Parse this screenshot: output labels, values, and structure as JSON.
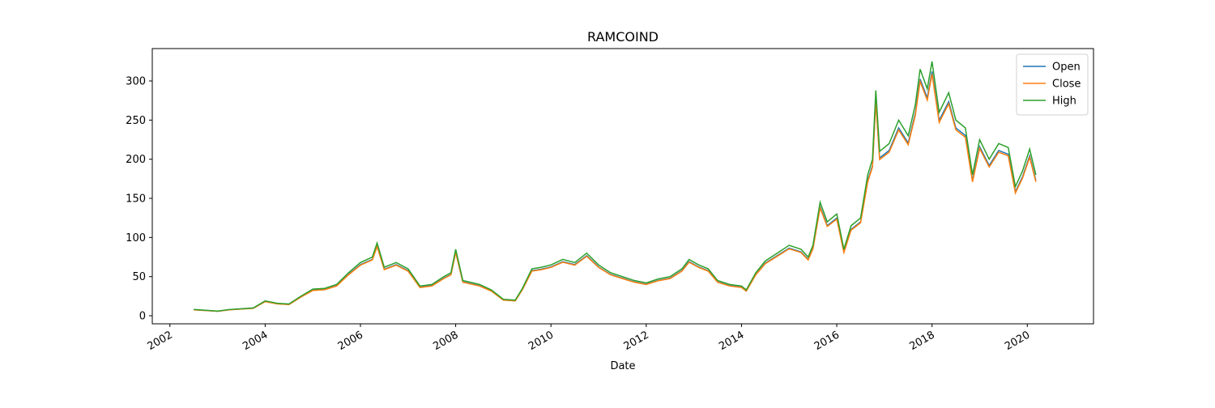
{
  "chart_data": {
    "type": "line",
    "title": "RAMCOIND",
    "xlabel": "Date",
    "x": [
      2002.5,
      2002.75,
      2003,
      2003.25,
      2003.5,
      2003.75,
      2004,
      2004.25,
      2004.5,
      2004.75,
      2005,
      2005.25,
      2005.5,
      2005.75,
      2006,
      2006.25,
      2006.35,
      2006.5,
      2006.75,
      2007,
      2007.25,
      2007.5,
      2007.75,
      2007.9,
      2008,
      2008.15,
      2008.5,
      2008.75,
      2009,
      2009.25,
      2009.4,
      2009.6,
      2009.8,
      2010,
      2010.25,
      2010.5,
      2010.75,
      2011,
      2011.25,
      2011.5,
      2011.75,
      2012,
      2012.25,
      2012.5,
      2012.75,
      2012.9,
      2013.1,
      2013.3,
      2013.5,
      2013.75,
      2014,
      2014.1,
      2014.3,
      2014.5,
      2014.75,
      2015,
      2015.25,
      2015.4,
      2015.5,
      2015.65,
      2015.8,
      2016,
      2016.15,
      2016.3,
      2016.5,
      2016.65,
      2016.75,
      2016.82,
      2016.9,
      2017.1,
      2017.3,
      2017.5,
      2017.65,
      2017.75,
      2017.9,
      2018,
      2018.15,
      2018.35,
      2018.5,
      2018.7,
      2018.85,
      2019,
      2019.2,
      2019.4,
      2019.6,
      2019.75,
      2019.9,
      2020.05,
      2020.18
    ],
    "series": [
      {
        "name": "Open",
        "color": "#1f77b4",
        "values": [
          7.7,
          6.8,
          5.8,
          7.7,
          8.7,
          9.6,
          18.3,
          15.4,
          14.4,
          24,
          32.6,
          33.6,
          38.4,
          52.8,
          65.3,
          72,
          89.3,
          59.5,
          65.3,
          57.6,
          36.5,
          38.4,
          48,
          52.8,
          81.6,
          43.2,
          38.4,
          31.7,
          20.2,
          19.2,
          33.6,
          57.6,
          59.5,
          62.4,
          69.1,
          65.3,
          76.8,
          62.4,
          52.8,
          48,
          43.2,
          40.3,
          45.1,
          48,
          57.6,
          69.1,
          62.4,
          57.6,
          43.2,
          38.4,
          36.5,
          31.7,
          52.8,
          67.2,
          76.8,
          86.4,
          81.6,
          72,
          86.4,
          139.2,
          115.2,
          124.8,
          81.6,
          110.4,
          120,
          172.8,
          192,
          276.5,
          201.6,
          211.2,
          240,
          220.8,
          259.2,
          302.4,
          278.4,
          312,
          249.6,
          273.6,
          240,
          230.4,
          172.8,
          216,
          192,
          211.2,
          206.4,
          158.4,
          177.6,
          204.5,
          172.8
        ]
      },
      {
        "name": "Close",
        "color": "#ff7f0e",
        "values": [
          7.6,
          6.7,
          5.7,
          7.6,
          8.6,
          9.5,
          18,
          15.2,
          14.3,
          23.8,
          32.3,
          33.3,
          38,
          52.3,
          64.6,
          71.3,
          88.4,
          58.9,
          64.6,
          57,
          36.1,
          38,
          47.5,
          52.3,
          80.8,
          42.8,
          38,
          31.4,
          20,
          19,
          33.3,
          57,
          58.9,
          61.8,
          68.4,
          64.6,
          76,
          61.8,
          52.3,
          47.5,
          42.8,
          39.9,
          44.7,
          47.5,
          57,
          68.4,
          61.8,
          57,
          42.8,
          38,
          36.1,
          31.4,
          52.3,
          66.5,
          76,
          85.5,
          80.8,
          71.3,
          85.5,
          137.8,
          114,
          123.5,
          80.8,
          109.3,
          118.8,
          171,
          190,
          273.6,
          199.5,
          209,
          237.5,
          218.5,
          256.5,
          299.3,
          275.5,
          308.8,
          247,
          270.8,
          237.5,
          228,
          171,
          213.8,
          190,
          209,
          204.3,
          156.8,
          175.8,
          202.4,
          171
        ]
      },
      {
        "name": "High",
        "color": "#2ca02c",
        "values": [
          8,
          7,
          6,
          8,
          9,
          10,
          19,
          16,
          15,
          25,
          34,
          35,
          40,
          55,
          68,
          75,
          93,
          62,
          68,
          60,
          38,
          40,
          50,
          55,
          85,
          45,
          40,
          33,
          21,
          20,
          35,
          60,
          62,
          65,
          72,
          68,
          80,
          65,
          55,
          50,
          45,
          42,
          47,
          50,
          60,
          72,
          65,
          60,
          45,
          40,
          38,
          33,
          55,
          70,
          80,
          90,
          85,
          75,
          90,
          145,
          120,
          130,
          85,
          115,
          125,
          180,
          200,
          288,
          210,
          220,
          250,
          230,
          270,
          315,
          290,
          325,
          260,
          285,
          250,
          240,
          180,
          225,
          200,
          220,
          215,
          165,
          185,
          213,
          180
        ]
      }
    ],
    "xlim": [
      2001.63,
      2021.39
    ],
    "xticks": [
      2002,
      2004,
      2006,
      2008,
      2010,
      2012,
      2014,
      2016,
      2018,
      2020
    ],
    "ylim": [
      -10.3,
      341.4
    ],
    "yticks": [
      0,
      50,
      100,
      150,
      200,
      250,
      300
    ],
    "grid": false,
    "legend": "upper right"
  }
}
